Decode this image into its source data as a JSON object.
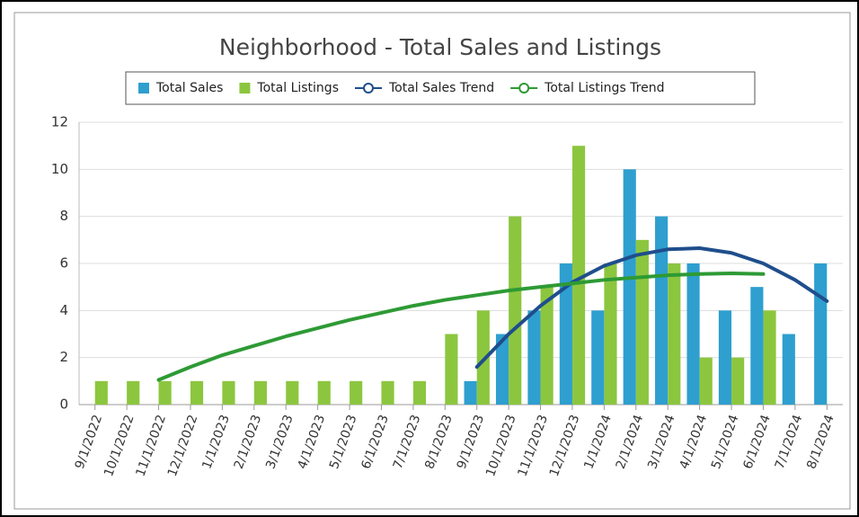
{
  "chart_data": {
    "type": "bar",
    "title": "Neighborhood - Total Sales and Listings",
    "categories": [
      "9/1/2022",
      "10/1/2022",
      "11/1/2022",
      "12/1/2022",
      "1/1/2023",
      "2/1/2023",
      "3/1/2023",
      "4/1/2023",
      "5/1/2023",
      "6/1/2023",
      "7/1/2023",
      "8/1/2023",
      "9/1/2023",
      "10/1/2023",
      "11/1/2023",
      "12/1/2023",
      "1/1/2024",
      "2/1/2024",
      "3/1/2024",
      "4/1/2024",
      "5/1/2024",
      "6/1/2024",
      "7/1/2024",
      "8/1/2024"
    ],
    "series": [
      {
        "name": "Total Sales",
        "type": "bar",
        "color": "#2e9fcf",
        "values": [
          null,
          null,
          null,
          null,
          null,
          null,
          null,
          null,
          null,
          null,
          null,
          null,
          1,
          3,
          4,
          6,
          4,
          10,
          8,
          6,
          4,
          5,
          3,
          6
        ]
      },
      {
        "name": "Total Listings",
        "type": "bar",
        "color": "#8cc63f",
        "values": [
          1,
          1,
          1,
          1,
          1,
          1,
          1,
          1,
          1,
          1,
          1,
          3,
          4,
          8,
          5,
          11,
          6,
          7,
          6,
          2,
          2,
          4,
          null,
          null
        ]
      },
      {
        "name": "Total Sales Trend",
        "type": "line",
        "color": "#1f4e8c",
        "values": [
          null,
          null,
          null,
          null,
          null,
          null,
          null,
          null,
          null,
          null,
          null,
          null,
          1.6,
          3.0,
          4.2,
          5.2,
          5.9,
          6.35,
          6.6,
          6.65,
          6.45,
          6.0,
          5.3,
          4.4
        ]
      },
      {
        "name": "Total Listings Trend",
        "type": "line",
        "color": "#2e9a35",
        "values": [
          null,
          null,
          1.05,
          1.6,
          2.1,
          2.5,
          2.9,
          3.25,
          3.6,
          3.9,
          4.2,
          4.45,
          4.65,
          4.85,
          5.0,
          5.15,
          5.3,
          5.4,
          5.5,
          5.55,
          5.58,
          5.55,
          null,
          null
        ]
      }
    ],
    "ylim": [
      0,
      12
    ],
    "yticks": [
      0,
      2,
      4,
      6,
      8,
      10,
      12
    ],
    "grid": true
  }
}
